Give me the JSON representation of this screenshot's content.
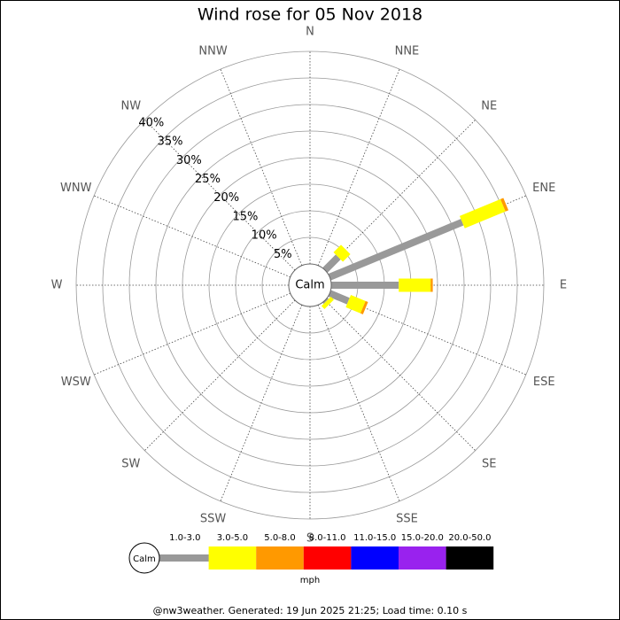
{
  "chart_data": {
    "type": "windrose",
    "title": "Wind rose for 05 Nov 2018",
    "categories": [
      "N",
      "NNE",
      "NE",
      "ENE",
      "E",
      "ESE",
      "SE",
      "SSE",
      "S",
      "SSW",
      "SW",
      "WSW",
      "W",
      "WNW",
      "NW",
      "NNW"
    ],
    "series": [
      {
        "name": "1.0-3.0",
        "color": "#999999",
        "values": [
          0,
          0,
          3.5,
          27,
          12.7,
          3.8,
          0.3,
          0,
          0,
          0,
          0,
          0,
          0,
          0,
          0,
          0
        ]
      },
      {
        "name": "3.0-5.0",
        "color": "#ffff00",
        "values": [
          0,
          0,
          2,
          8.3,
          6,
          3,
          0.8,
          0,
          0,
          0,
          0,
          0,
          0,
          0,
          0,
          0
        ]
      },
      {
        "name": "5.0-8.0",
        "color": "#ff9900",
        "values": [
          0,
          0,
          0,
          0.6,
          0.4,
          0.5,
          0,
          0,
          0,
          0,
          0,
          0,
          0,
          0,
          0,
          0
        ]
      },
      {
        "name": "8.0-11.0",
        "color": "#ff0000",
        "values": [
          0,
          0,
          0,
          0,
          0,
          0,
          0,
          0,
          0,
          0,
          0,
          0,
          0,
          0,
          0,
          0
        ]
      },
      {
        "name": "11.0-15.0",
        "color": "#0000ff",
        "values": [
          0,
          0,
          0,
          0,
          0,
          0,
          0,
          0,
          0,
          0,
          0,
          0,
          0,
          0,
          0,
          0
        ]
      },
      {
        "name": "15.0-20.0",
        "color": "#9922ee",
        "values": [
          0,
          0,
          0,
          0,
          0,
          0,
          0,
          0,
          0,
          0,
          0,
          0,
          0,
          0,
          0,
          0
        ]
      },
      {
        "name": "20.0-50.0",
        "color": "#000000",
        "values": [
          0,
          0,
          0,
          0,
          0,
          0,
          0,
          0,
          0,
          0,
          0,
          0,
          0,
          0,
          0,
          0
        ]
      }
    ],
    "ylim": [
      0,
      40
    ],
    "yticks": [
      {
        "value": 5,
        "label": "5%"
      },
      {
        "value": 10,
        "label": "10%"
      },
      {
        "value": 15,
        "label": "15%"
      },
      {
        "value": 20,
        "label": "20%"
      },
      {
        "value": 25,
        "label": "25%"
      },
      {
        "value": 30,
        "label": "30%"
      },
      {
        "value": 35,
        "label": "35%"
      },
      {
        "value": 40,
        "label": "40%"
      }
    ],
    "calm_label": "Calm",
    "legend_unit": "mph",
    "footer": "@nw3weather. Generated: 19 Jun 2025 21:25; Load time: 0.10 s"
  }
}
